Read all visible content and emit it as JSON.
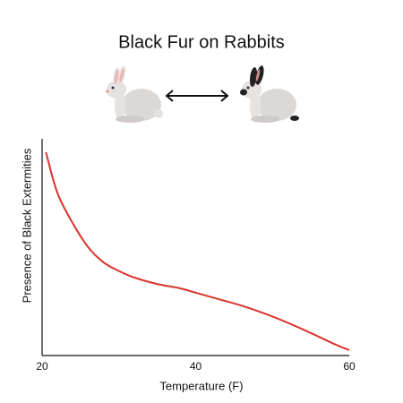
{
  "chart_data": {
    "type": "line",
    "title": "Black Fur on Rabbits",
    "x_label": "Temperature (F)",
    "y_label": "Presence of Black Extermities",
    "x": [
      20.5,
      22,
      24,
      26,
      28,
      30,
      32,
      35,
      38,
      40,
      43,
      46,
      50,
      54,
      58,
      60
    ],
    "values": [
      93.8,
      75,
      61,
      50,
      43,
      39,
      36,
      33,
      31,
      29,
      26,
      23,
      18,
      12,
      5.4,
      2.5
    ],
    "color": "#d9342b",
    "xlim": [
      20,
      60
    ],
    "xticks": [
      20,
      40,
      60
    ],
    "ylim": [
      0,
      100
    ]
  }
}
